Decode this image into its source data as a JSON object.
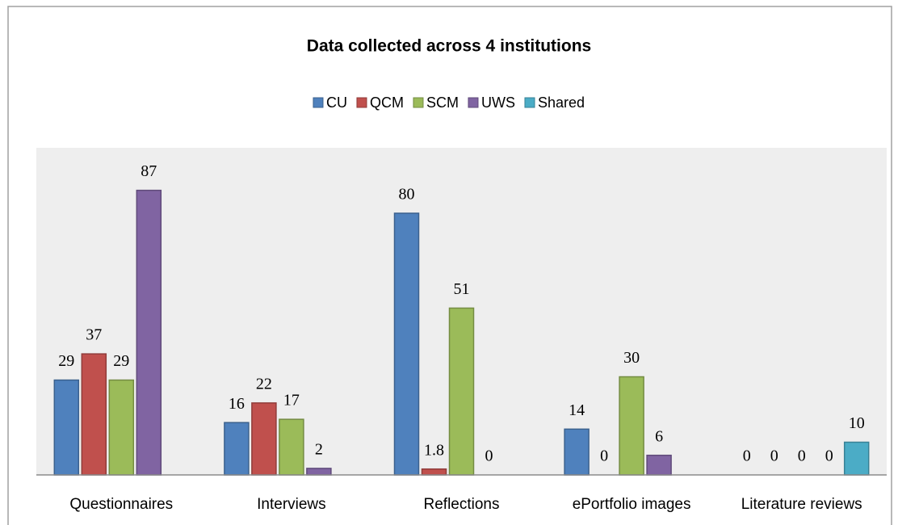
{
  "chart_data": {
    "type": "bar",
    "title": "Data collected across 4 institutions",
    "categories": [
      "Questionnaires",
      "Interviews",
      "Reflections",
      "ePortfolio images",
      "Literature reviews"
    ],
    "series": [
      {
        "name": "CU",
        "color": "#4f81bd",
        "values": [
          29,
          16,
          80,
          14,
          0
        ]
      },
      {
        "name": "QCM",
        "color": "#c0504d",
        "values": [
          37,
          22,
          1.8,
          0,
          0
        ]
      },
      {
        "name": "SCM",
        "color": "#9bbb59",
        "values": [
          29,
          17,
          51,
          30,
          0
        ]
      },
      {
        "name": "UWS",
        "color": "#8064a2",
        "values": [
          87,
          2,
          0,
          6,
          0
        ]
      },
      {
        "name": "Shared",
        "color": "#4bacc6",
        "values": [
          null,
          null,
          null,
          null,
          10
        ]
      }
    ],
    "ylim": [
      0,
      100
    ],
    "legend": "top"
  }
}
